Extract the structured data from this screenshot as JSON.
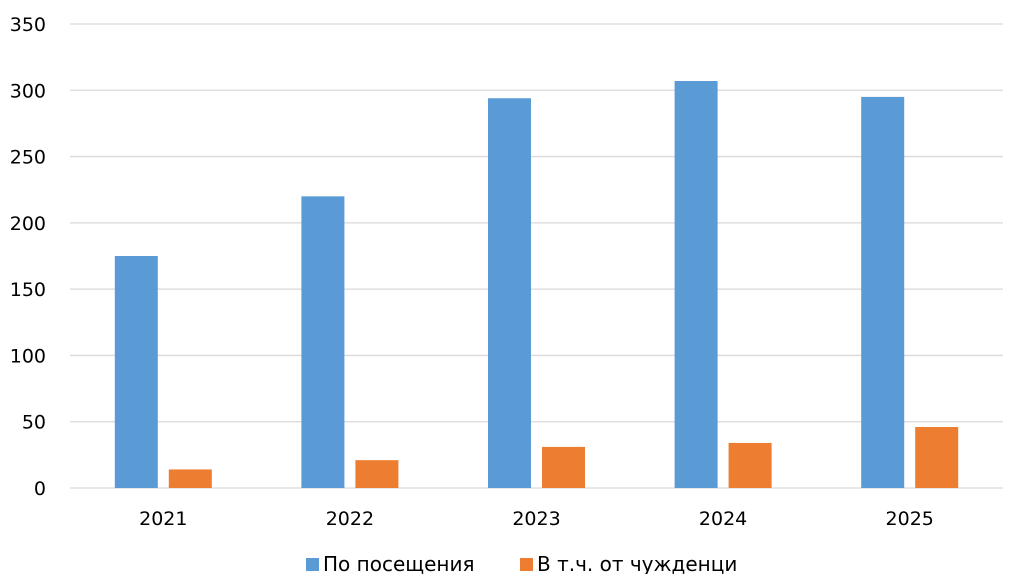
{
  "chart_data": {
    "type": "bar",
    "categories": [
      "2021",
      "2022",
      "2023",
      "2024",
      "2025"
    ],
    "series": [
      {
        "name": "По посещения",
        "values": [
          175,
          220,
          294,
          307,
          295
        ],
        "color": "#5B9BD5"
      },
      {
        "name": "В т.ч. от чужденци",
        "values": [
          14,
          21,
          31,
          34,
          46
        ],
        "color": "#ED7D31"
      }
    ],
    "y_ticks": [
      "0",
      "50",
      "100",
      "150",
      "200",
      "250",
      "300",
      "350"
    ],
    "ylim": [
      0,
      350
    ],
    "grid": true,
    "legend_position": "bottom",
    "title": "",
    "xlabel": "",
    "ylabel": ""
  }
}
